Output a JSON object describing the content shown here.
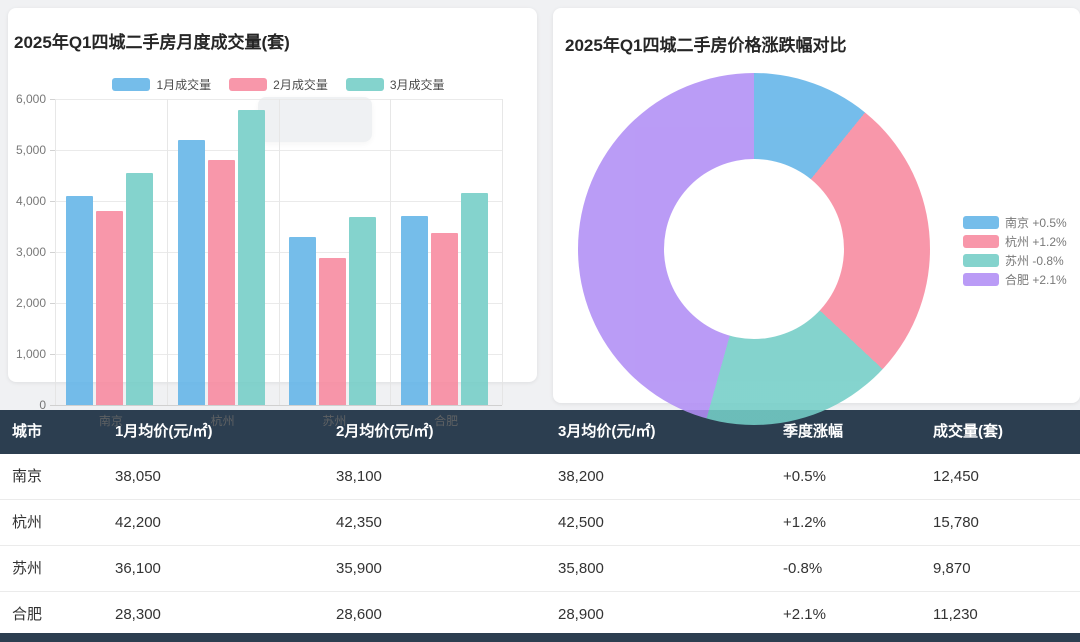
{
  "chart_data": [
    {
      "type": "bar",
      "title": "2025年Q1四城二手房月度成交量(套)",
      "categories": [
        "南京",
        "杭州",
        "苏州",
        "合肥"
      ],
      "series": [
        {
          "name": "1月成交量",
          "color": "#62b4e8",
          "values": [
            4100,
            5200,
            3300,
            3700
          ]
        },
        {
          "name": "2月成交量",
          "color": "#f8899f",
          "values": [
            3800,
            4800,
            2890,
            3380
          ]
        },
        {
          "name": "3月成交量",
          "color": "#74cec7",
          "values": [
            4550,
            5780,
            3680,
            4150
          ]
        }
      ],
      "ylim": [
        0,
        6000
      ],
      "ytick_interval": 1000,
      "ytick_labels": [
        "0",
        "1,000",
        "2,000",
        "3,000",
        "4,000",
        "5,000",
        "6,000"
      ],
      "grid": true,
      "legend_position": "top"
    },
    {
      "type": "pie",
      "donut": true,
      "title": "2025年Q1四城二手房价格涨跌幅对比",
      "legend_position": "right",
      "slices": [
        {
          "name": "南京",
          "change": "+0.5%",
          "label": "南京 +0.5%",
          "value": 0.5,
          "color": "#62b4e8"
        },
        {
          "name": "杭州",
          "change": "+1.2%",
          "label": "杭州 +1.2%",
          "value": 1.2,
          "color": "#f8899f"
        },
        {
          "name": "苏州",
          "change": "-0.8%",
          "label": "苏州 -0.8%",
          "value": 0.8,
          "color": "#74cec7"
        },
        {
          "name": "合肥",
          "change": "+2.1%",
          "label": "合肥 +2.1%",
          "value": 2.1,
          "color": "#b18ef5"
        }
      ]
    }
  ],
  "table": {
    "header_bg": "#2c3e50",
    "columns": [
      "城市",
      "1月均价(元/㎡)",
      "2月均价(元/㎡)",
      "3月均价(元/㎡)",
      "季度涨幅",
      "成交量(套)"
    ],
    "rows": [
      [
        "南京",
        "38,050",
        "38,100",
        "38,200",
        "+0.5%",
        "12,450"
      ],
      [
        "杭州",
        "42,200",
        "42,350",
        "42,500",
        "+1.2%",
        "15,780"
      ],
      [
        "苏州",
        "36,100",
        "35,900",
        "35,800",
        "-0.8%",
        "9,870"
      ],
      [
        "合肥",
        "28,300",
        "28,600",
        "28,900",
        "+2.1%",
        "11,230"
      ]
    ]
  }
}
